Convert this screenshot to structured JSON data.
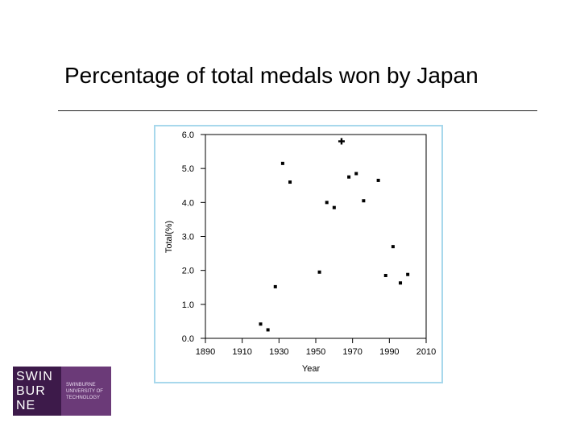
{
  "slide": {
    "title": "Percentage of total medals won by Japan"
  },
  "logo": {
    "mark_lines": [
      "SWIN",
      "BUR",
      "NE"
    ],
    "text_lines": [
      "SWINBURNE",
      "UNIVERSITY OF",
      "TECHNOLOGY"
    ]
  },
  "chart_data": {
    "type": "scatter",
    "title": "",
    "xlabel": "Year",
    "ylabel": "Total(%)",
    "xlim": [
      1890,
      2010
    ],
    "ylim": [
      0.0,
      6.0
    ],
    "x_ticks": [
      1890,
      1910,
      1930,
      1950,
      1970,
      1990,
      2010
    ],
    "y_ticks": [
      "0.0",
      "1.0",
      "2.0",
      "3.0",
      "4.0",
      "5.0",
      "6.0"
    ],
    "grid": false,
    "series": [
      {
        "x": [
          1920,
          1924,
          1928,
          1932,
          1936,
          1952,
          1956,
          1960,
          1964,
          1968,
          1972,
          1976,
          1984,
          1988,
          1992,
          1996,
          2000
        ],
        "y": [
          0.42,
          0.25,
          1.52,
          5.15,
          4.6,
          1.95,
          4.0,
          3.85,
          5.8,
          4.75,
          4.85,
          4.05,
          4.65,
          1.85,
          2.7,
          1.63,
          1.88
        ]
      }
    ],
    "highlight_index": 8
  }
}
